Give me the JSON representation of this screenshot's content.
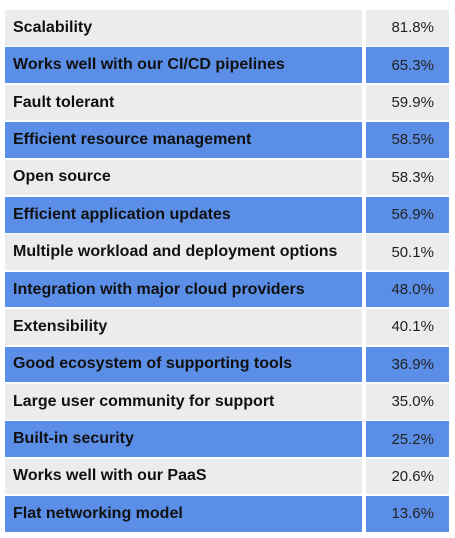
{
  "colors": {
    "row_light": "#ececec",
    "row_accent": "#5b8ee6",
    "text": "#111111"
  },
  "chart_data": {
    "type": "table",
    "columns": [
      "",
      ""
    ],
    "rows": [
      {
        "label": "Scalability",
        "value": "81.8%"
      },
      {
        "label": "Works well with our CI/CD pipelines",
        "value": "65.3%"
      },
      {
        "label": "Fault tolerant",
        "value": "59.9%"
      },
      {
        "label": "Efficient resource management",
        "value": "58.5%"
      },
      {
        "label": "Open source",
        "value": "58.3%"
      },
      {
        "label": "Efficient application updates",
        "value": "56.9%"
      },
      {
        "label": "Multiple workload and deployment options",
        "value": "50.1%"
      },
      {
        "label": "Integration with major cloud providers",
        "value": "48.0%"
      },
      {
        "label": "Extensibility",
        "value": "40.1%"
      },
      {
        "label": "Good ecosystem of supporting tools",
        "value": "36.9%"
      },
      {
        "label": "Large user community for support",
        "value": "35.0%"
      },
      {
        "label": "Built-in security",
        "value": "25.2%"
      },
      {
        "label": "Works well with our PaaS",
        "value": "20.6%"
      },
      {
        "label": "Flat networking model",
        "value": "13.6%"
      }
    ]
  }
}
